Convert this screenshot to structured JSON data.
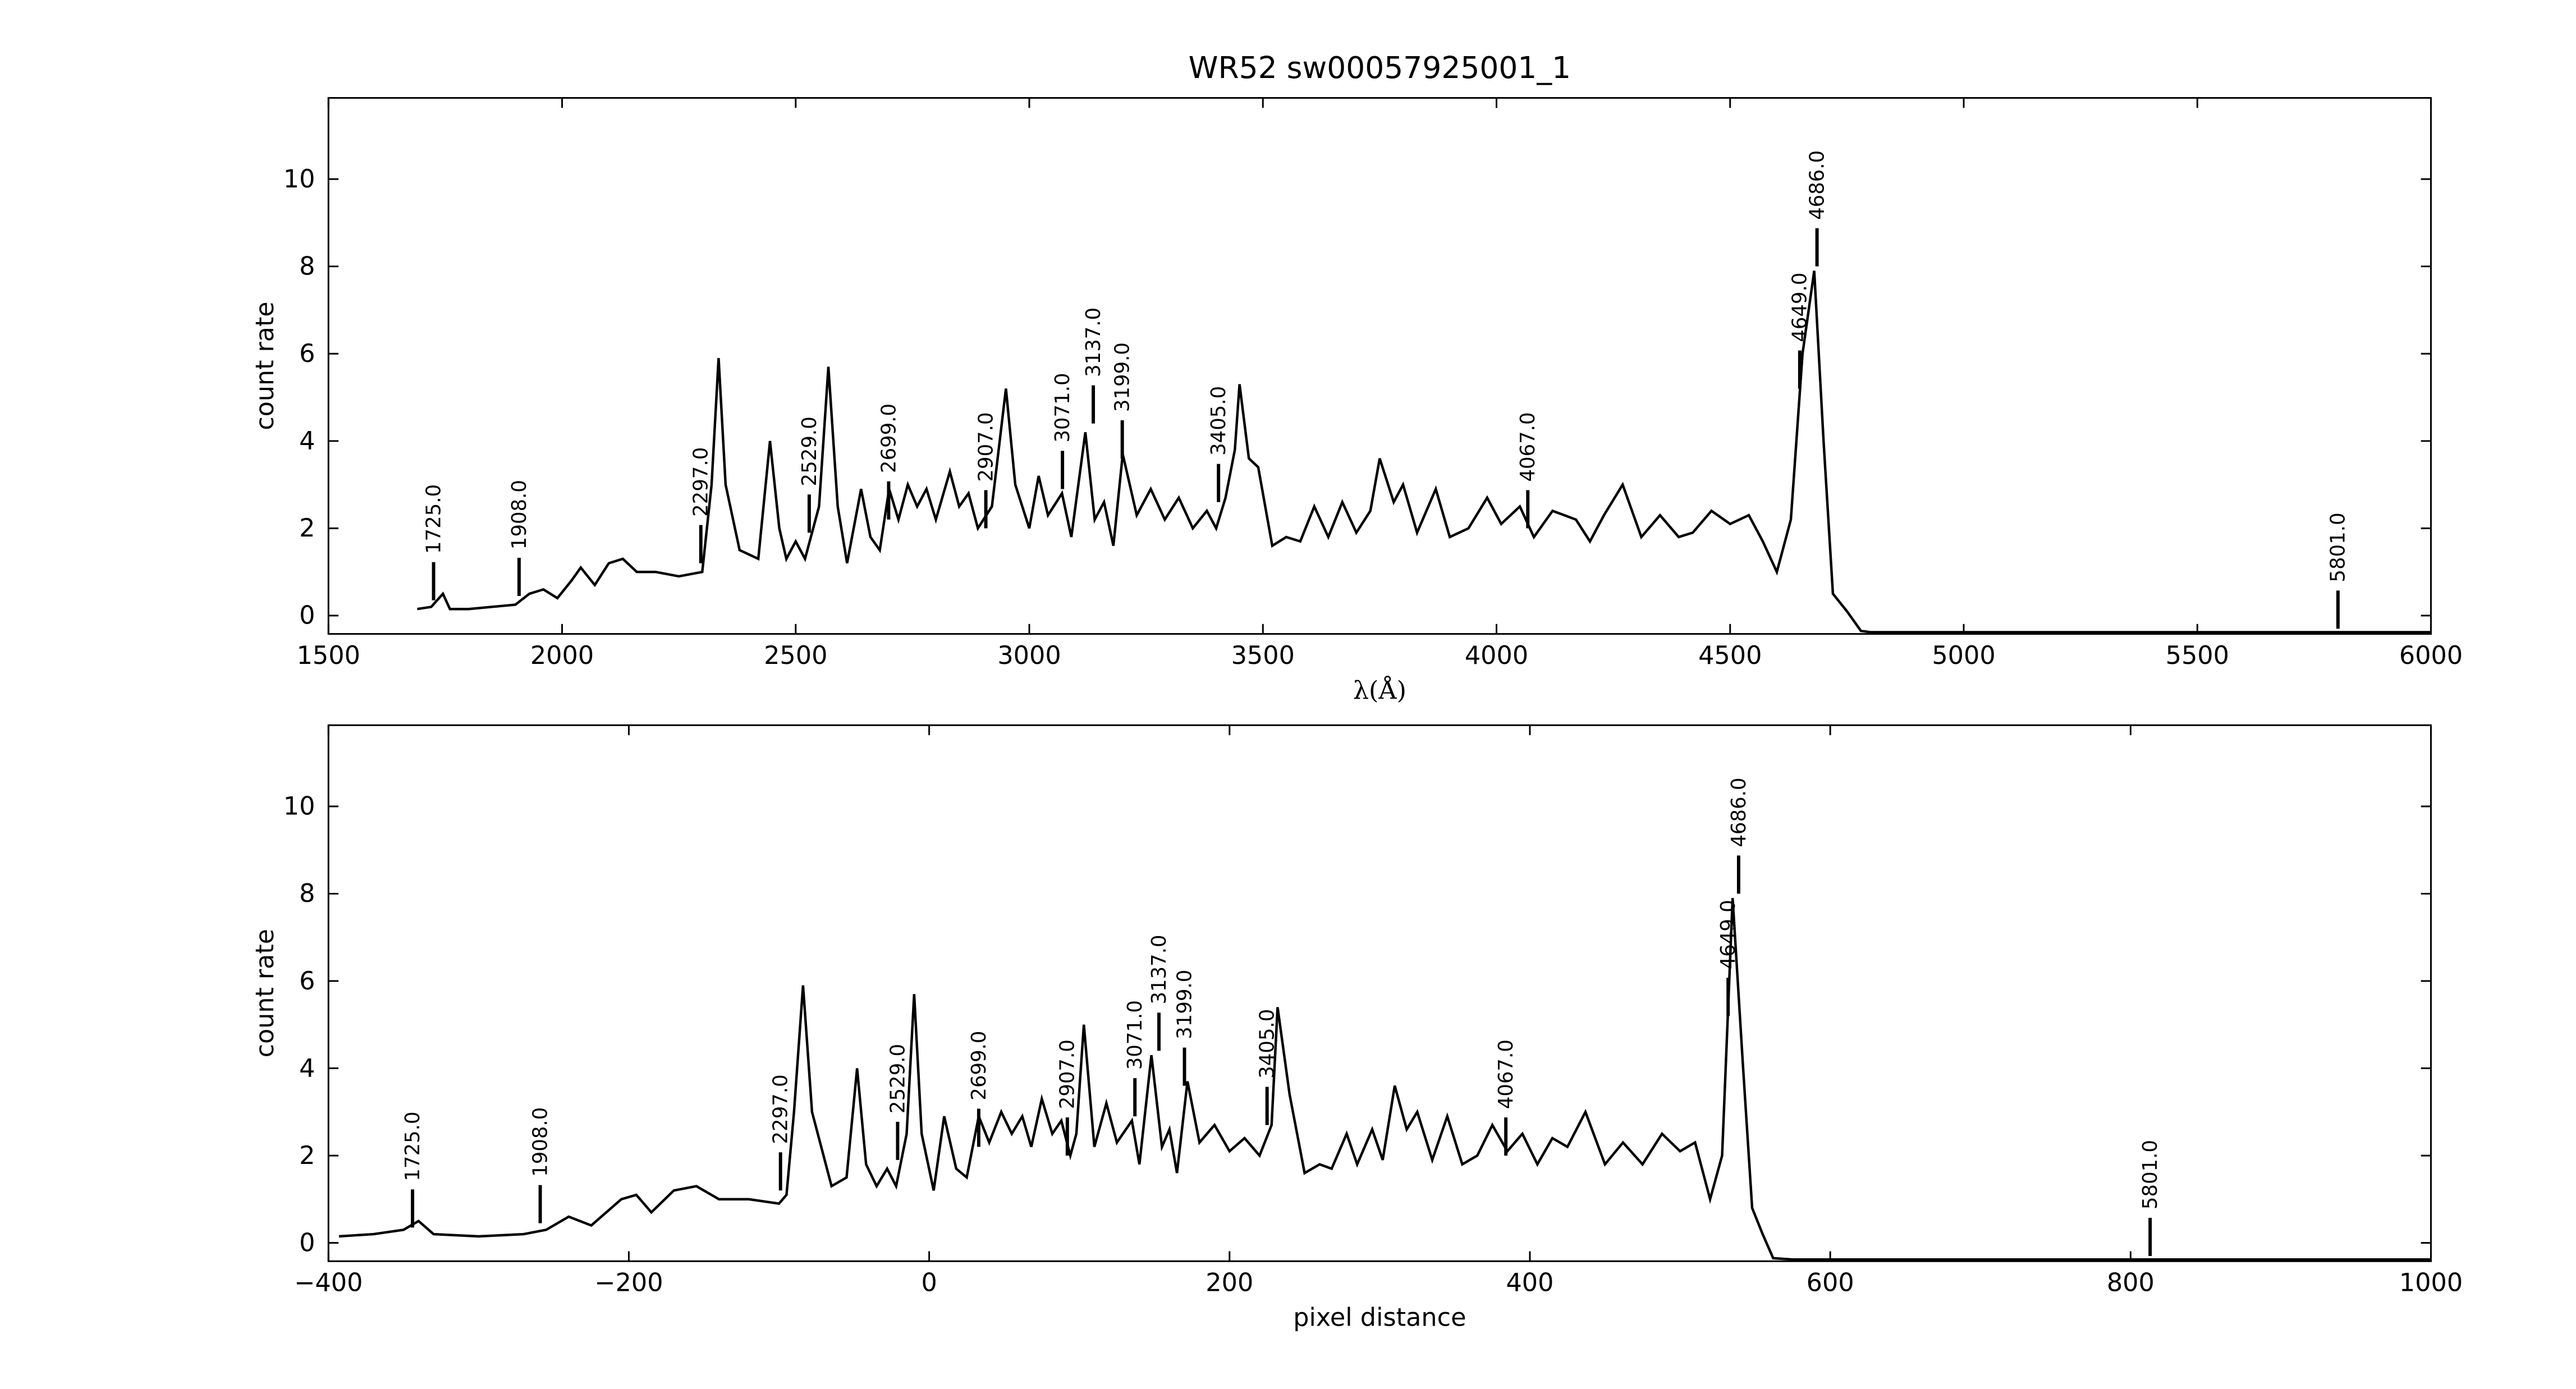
{
  "chart_data": [
    {
      "type": "line",
      "title": "WR52  sw00057925001_1",
      "xlabel": "λ(Å)",
      "ylabel": "count rate",
      "xlim": [
        1500,
        6000
      ],
      "ylim": [
        -0.42,
        11.86
      ],
      "xticks": [
        1500,
        2000,
        2500,
        3000,
        3500,
        4000,
        4500,
        5000,
        5500,
        6000
      ],
      "yticks": [
        0,
        2,
        4,
        6,
        8,
        10
      ],
      "x": [
        1690,
        1720,
        1745,
        1760,
        1800,
        1850,
        1900,
        1930,
        1960,
        1990,
        2020,
        2040,
        2070,
        2100,
        2130,
        2160,
        2200,
        2250,
        2300,
        2320,
        2335,
        2350,
        2380,
        2420,
        2445,
        2465,
        2480,
        2500,
        2520,
        2550,
        2570,
        2590,
        2610,
        2640,
        2660,
        2680,
        2700,
        2720,
        2740,
        2760,
        2780,
        2800,
        2830,
        2850,
        2870,
        2890,
        2920,
        2950,
        2970,
        3000,
        3020,
        3040,
        3070,
        3090,
        3120,
        3140,
        3160,
        3180,
        3200,
        3230,
        3260,
        3290,
        3320,
        3350,
        3380,
        3400,
        3420,
        3440,
        3450,
        3470,
        3490,
        3520,
        3550,
        3580,
        3610,
        3640,
        3670,
        3700,
        3730,
        3750,
        3780,
        3800,
        3830,
        3870,
        3900,
        3940,
        3980,
        4010,
        4050,
        4080,
        4120,
        4170,
        4200,
        4230,
        4270,
        4310,
        4350,
        4390,
        4420,
        4460,
        4500,
        4540,
        4570,
        4600,
        4630,
        4655,
        4680,
        4700,
        4720,
        4750,
        4780,
        4800,
        6000
      ],
      "series": [
        {
          "name": "spectrum",
          "color": "#000000",
          "values": [
            0.15,
            0.2,
            0.5,
            0.15,
            0.15,
            0.2,
            0.25,
            0.5,
            0.6,
            0.4,
            0.8,
            1.1,
            0.7,
            1.2,
            1.3,
            1.0,
            1.0,
            0.9,
            1.0,
            3.0,
            5.9,
            3.0,
            1.5,
            1.3,
            4.0,
            2.0,
            1.3,
            1.7,
            1.3,
            2.5,
            5.7,
            2.5,
            1.2,
            2.9,
            1.8,
            1.5,
            2.9,
            2.2,
            3.0,
            2.5,
            2.9,
            2.2,
            3.3,
            2.5,
            2.8,
            2.0,
            2.5,
            5.2,
            3.0,
            2.0,
            3.2,
            2.3,
            2.8,
            1.8,
            4.2,
            2.2,
            2.6,
            1.6,
            3.7,
            2.3,
            2.9,
            2.2,
            2.7,
            2.0,
            2.4,
            2.0,
            2.7,
            3.8,
            5.3,
            3.6,
            3.4,
            1.6,
            1.8,
            1.7,
            2.5,
            1.8,
            2.6,
            1.9,
            2.4,
            3.6,
            2.6,
            3.0,
            1.9,
            2.9,
            1.8,
            2.0,
            2.7,
            2.1,
            2.5,
            1.8,
            2.4,
            2.2,
            1.7,
            2.3,
            3.0,
            1.8,
            2.3,
            1.8,
            1.9,
            2.4,
            2.1,
            2.3,
            1.7,
            1.0,
            2.2,
            6.0,
            7.9,
            4.0,
            0.5,
            0.1,
            -0.35,
            -0.38,
            -0.38
          ]
        }
      ],
      "annotations": [
        {
          "label": "1725.0",
          "x": 1725,
          "y": 0.35
        },
        {
          "label": "1908.0",
          "x": 1908,
          "y": 0.45
        },
        {
          "label": "2297.0",
          "x": 2297,
          "y": 1.2
        },
        {
          "label": "2529.0",
          "x": 2529,
          "y": 1.9
        },
        {
          "label": "2699.0",
          "x": 2699,
          "y": 2.2
        },
        {
          "label": "2907.0",
          "x": 2907,
          "y": 2.0
        },
        {
          "label": "3071.0",
          "x": 3071,
          "y": 2.9
        },
        {
          "label": "3137.0",
          "x": 3137,
          "y": 4.4
        },
        {
          "label": "3199.0",
          "x": 3199,
          "y": 3.6
        },
        {
          "label": "3405.0",
          "x": 3405,
          "y": 2.6
        },
        {
          "label": "4067.0",
          "x": 4067,
          "y": 2.0
        },
        {
          "label": "4649.0",
          "x": 4649,
          "y": 5.2
        },
        {
          "label": "4686.0",
          "x": 4686,
          "y": 8.0
        },
        {
          "label": "5801.0",
          "x": 5801,
          "y": -0.3
        }
      ]
    },
    {
      "type": "line",
      "xlabel": "pixel distance",
      "ylabel": "count rate",
      "xlim": [
        -400,
        1000
      ],
      "ylim": [
        -0.42,
        11.86
      ],
      "xticks": [
        {
          "value": -400,
          "label": "−400"
        },
        {
          "value": -200,
          "label": "−200"
        },
        0,
        200,
        400,
        600,
        800,
        1000
      ],
      "yticks": [
        0,
        2,
        4,
        6,
        8,
        10
      ],
      "x": [
        -393,
        -370,
        -350,
        -340,
        -330,
        -300,
        -270,
        -255,
        -240,
        -225,
        -205,
        -195,
        -185,
        -170,
        -155,
        -140,
        -120,
        -100,
        -95,
        -90,
        -84,
        -78,
        -65,
        -55,
        -48,
        -42,
        -35,
        -28,
        -22,
        -15,
        -10,
        -5,
        3,
        10,
        18,
        25,
        33,
        40,
        48,
        55,
        62,
        68,
        75,
        82,
        88,
        94,
        98,
        103,
        110,
        118,
        125,
        135,
        140,
        148,
        155,
        160,
        165,
        172,
        180,
        190,
        200,
        210,
        220,
        228,
        232,
        240,
        250,
        260,
        268,
        278,
        285,
        295,
        302,
        310,
        318,
        325,
        335,
        345,
        355,
        365,
        375,
        385,
        395,
        405,
        415,
        425,
        437,
        450,
        462,
        475,
        488,
        500,
        510,
        520,
        528,
        535,
        542,
        548,
        555,
        562,
        575,
        1000
      ],
      "series": [
        {
          "name": "spectrum",
          "color": "#000000",
          "values": [
            0.15,
            0.2,
            0.3,
            0.5,
            0.2,
            0.15,
            0.2,
            0.3,
            0.6,
            0.4,
            1.0,
            1.1,
            0.7,
            1.2,
            1.3,
            1.0,
            1.0,
            0.9,
            1.1,
            3.0,
            5.9,
            3.0,
            1.3,
            1.5,
            4.0,
            1.8,
            1.3,
            1.7,
            1.3,
            2.5,
            5.7,
            2.5,
            1.2,
            2.9,
            1.7,
            1.5,
            2.9,
            2.3,
            3.0,
            2.5,
            2.9,
            2.2,
            3.3,
            2.5,
            2.8,
            2.0,
            2.5,
            5.0,
            2.2,
            3.2,
            2.3,
            2.8,
            1.8,
            4.3,
            2.2,
            2.6,
            1.6,
            3.7,
            2.3,
            2.7,
            2.1,
            2.4,
            2.0,
            2.7,
            5.4,
            3.4,
            1.6,
            1.8,
            1.7,
            2.5,
            1.8,
            2.6,
            1.9,
            3.6,
            2.6,
            3.0,
            1.9,
            2.9,
            1.8,
            2.0,
            2.7,
            2.1,
            2.5,
            1.8,
            2.4,
            2.2,
            3.0,
            1.8,
            2.3,
            1.8,
            2.5,
            2.1,
            2.3,
            1.0,
            2.0,
            7.9,
            4.0,
            0.8,
            0.2,
            -0.35,
            -0.38,
            -0.38
          ]
        }
      ],
      "annotations": [
        {
          "label": "1725.0",
          "x": -344,
          "y": 0.35
        },
        {
          "label": "1908.0",
          "x": -259,
          "y": 0.45
        },
        {
          "label": "2297.0",
          "x": -99,
          "y": 1.2
        },
        {
          "label": "2529.0",
          "x": -21,
          "y": 1.9
        },
        {
          "label": "2699.0",
          "x": 33,
          "y": 2.2
        },
        {
          "label": "2907.0",
          "x": 92,
          "y": 2.0
        },
        {
          "label": "3071.0",
          "x": 137,
          "y": 2.9
        },
        {
          "label": "3137.0",
          "x": 153,
          "y": 4.4
        },
        {
          "label": "3199.0",
          "x": 170,
          "y": 3.6
        },
        {
          "label": "3405.0",
          "x": 225,
          "y": 2.7
        },
        {
          "label": "4067.0",
          "x": 384,
          "y": 2.0
        },
        {
          "label": "4649.0",
          "x": 532,
          "y": 5.2
        },
        {
          "label": "4686.0",
          "x": 539,
          "y": 8.0
        },
        {
          "label": "5801.0",
          "x": 813,
          "y": -0.3
        }
      ]
    }
  ]
}
